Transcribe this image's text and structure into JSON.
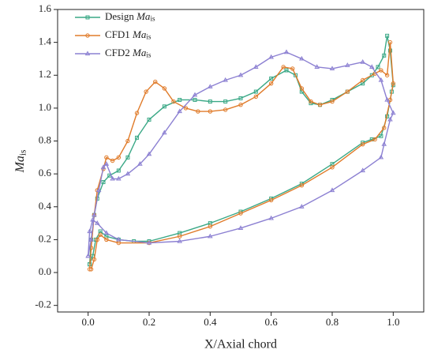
{
  "chart_data": {
    "type": "line",
    "xlabel": "X/Axial chord",
    "ylabel": "Ma_is",
    "xlim": [
      -0.1,
      1.1
    ],
    "xticks": [
      {
        "value": 0,
        "label": "0.0"
      },
      0.2,
      0.4,
      0.6,
      0.8,
      {
        "value": 1,
        "label": "1.0"
      }
    ],
    "ylim": [
      -0.24,
      1.6
    ],
    "yticks": [
      -0.2,
      {
        "value": 0,
        "label": "0.0"
      },
      0.2,
      0.4,
      0.6,
      0.8,
      {
        "value": 1,
        "label": "1.0"
      },
      1.2,
      1.4,
      1.6
    ],
    "legend": "upper left",
    "series": [
      {
        "name": "Design Ma_is",
        "color": "#3aa886",
        "marker": "square",
        "x": [
          0.005,
          0.01,
          0.02,
          0.03,
          0.05,
          0.07,
          0.1,
          0.13,
          0.16,
          0.2,
          0.25,
          0.3,
          0.35,
          0.4,
          0.45,
          0.5,
          0.55,
          0.6,
          0.65,
          0.68,
          0.7,
          0.73,
          0.76,
          0.8,
          0.85,
          0.9,
          0.93,
          0.95,
          0.97,
          0.98,
          0.99,
          1.0,
          0.995,
          0.98,
          0.96,
          0.93,
          0.9,
          0.8,
          0.7,
          0.6,
          0.5,
          0.4,
          0.3,
          0.2,
          0.15,
          0.1,
          0.06,
          0.04,
          0.025,
          0.015,
          0.005
        ],
        "values": [
          0.05,
          0.2,
          0.35,
          0.45,
          0.55,
          0.59,
          0.62,
          0.7,
          0.82,
          0.93,
          1.01,
          1.05,
          1.05,
          1.04,
          1.04,
          1.06,
          1.1,
          1.18,
          1.23,
          1.2,
          1.1,
          1.03,
          1.02,
          1.05,
          1.1,
          1.15,
          1.2,
          1.25,
          1.32,
          1.44,
          1.35,
          1.14,
          1.1,
          0.95,
          0.83,
          0.81,
          0.79,
          0.66,
          0.54,
          0.45,
          0.37,
          0.3,
          0.24,
          0.19,
          0.19,
          0.2,
          0.22,
          0.25,
          0.2,
          0.1,
          0.05
        ]
      },
      {
        "name": "CFD1 Ma_is",
        "color": "#e07b2a",
        "marker": "circle",
        "x": [
          0.005,
          0.01,
          0.02,
          0.03,
          0.05,
          0.06,
          0.08,
          0.1,
          0.13,
          0.16,
          0.19,
          0.22,
          0.25,
          0.28,
          0.32,
          0.36,
          0.4,
          0.45,
          0.5,
          0.55,
          0.6,
          0.64,
          0.67,
          0.7,
          0.73,
          0.76,
          0.8,
          0.85,
          0.9,
          0.94,
          0.96,
          0.98,
          0.99,
          1.0,
          0.99,
          0.97,
          0.94,
          0.9,
          0.8,
          0.7,
          0.6,
          0.5,
          0.4,
          0.3,
          0.2,
          0.1,
          0.06,
          0.04,
          0.03,
          0.02,
          0.01
        ],
        "values": [
          0.02,
          0.15,
          0.35,
          0.5,
          0.63,
          0.7,
          0.68,
          0.7,
          0.8,
          0.97,
          1.1,
          1.16,
          1.12,
          1.04,
          1.0,
          0.98,
          0.98,
          0.99,
          1.02,
          1.07,
          1.15,
          1.25,
          1.24,
          1.12,
          1.04,
          1.02,
          1.04,
          1.1,
          1.17,
          1.21,
          1.23,
          1.2,
          1.4,
          1.15,
          1.05,
          0.88,
          0.81,
          0.78,
          0.64,
          0.53,
          0.44,
          0.36,
          0.28,
          0.22,
          0.18,
          0.18,
          0.2,
          0.23,
          0.2,
          0.08,
          0.02
        ]
      },
      {
        "name": "CFD2 Ma_is",
        "color": "#8c80d2",
        "marker": "triangle",
        "x": [
          0,
          0.01,
          0.02,
          0.035,
          0.05,
          0.06,
          0.08,
          0.1,
          0.13,
          0.17,
          0.2,
          0.25,
          0.3,
          0.35,
          0.4,
          0.45,
          0.5,
          0.55,
          0.6,
          0.65,
          0.7,
          0.75,
          0.8,
          0.85,
          0.9,
          0.93,
          0.96,
          0.98,
          1.0,
          0.99,
          0.97,
          0.96,
          0.9,
          0.8,
          0.7,
          0.6,
          0.5,
          0.4,
          0.3,
          0.2,
          0.1,
          0.06,
          0.03,
          0.015,
          0.005,
          0
        ],
        "values": [
          0.1,
          0.2,
          0.35,
          0.5,
          0.64,
          0.66,
          0.57,
          0.57,
          0.6,
          0.66,
          0.72,
          0.85,
          0.98,
          1.08,
          1.13,
          1.17,
          1.2,
          1.25,
          1.31,
          1.34,
          1.3,
          1.25,
          1.24,
          1.26,
          1.28,
          1.25,
          1.17,
          1.05,
          0.97,
          0.93,
          0.78,
          0.7,
          0.62,
          0.5,
          0.4,
          0.33,
          0.27,
          0.22,
          0.19,
          0.18,
          0.2,
          0.24,
          0.3,
          0.32,
          0.25,
          0.1
        ]
      }
    ]
  }
}
